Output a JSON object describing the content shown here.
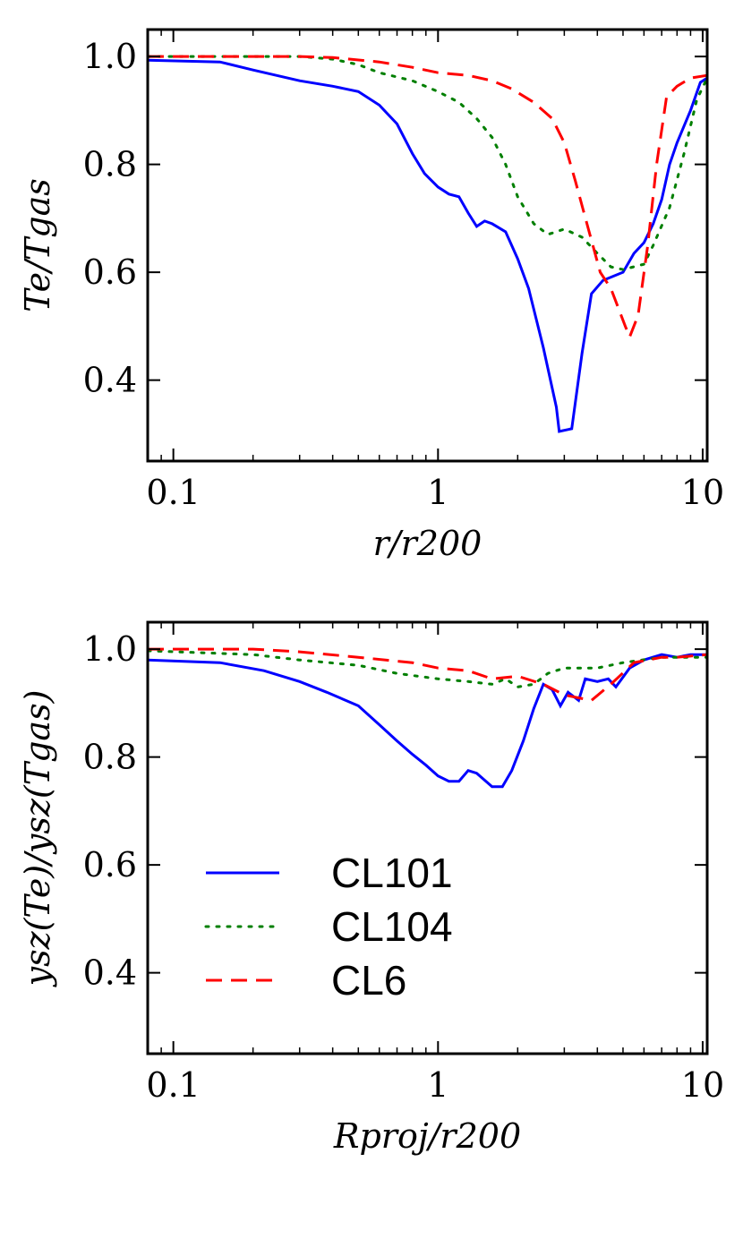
{
  "chart_data": [
    {
      "type": "line",
      "xlabel": "r/r200",
      "ylabel": "Te/Tgas",
      "xscale": "log",
      "xlim": [
        0.08,
        10.4
      ],
      "xticks": [
        0.1,
        1,
        10
      ],
      "ylim": [
        0.25,
        1.05
      ],
      "yticks": [
        {
          "value": 1,
          "label": "1.0"
        },
        0.8,
        0.6,
        0.4
      ],
      "series": [
        {
          "color": "#0000ff",
          "linestyle": "solid",
          "x": [
            0.08,
            0.15,
            0.2,
            0.3,
            0.4,
            0.5,
            0.6,
            0.7,
            0.8,
            0.89,
            1.0,
            1.1,
            1.2,
            1.3,
            1.4,
            1.5,
            1.6,
            1.8,
            2.0,
            2.2,
            2.5,
            2.8,
            2.87,
            3.2,
            3.5,
            3.8,
            4.2,
            5.0,
            5.5,
            6.0,
            6.5,
            7.0,
            7.5,
            8.0,
            9.0,
            9.8,
            10.4
          ],
          "values": [
            0.993,
            0.99,
            0.975,
            0.955,
            0.945,
            0.935,
            0.91,
            0.875,
            0.82,
            0.783,
            0.758,
            0.745,
            0.74,
            0.71,
            0.685,
            0.695,
            0.69,
            0.675,
            0.625,
            0.57,
            0.46,
            0.35,
            0.305,
            0.31,
            0.45,
            0.56,
            0.585,
            0.6,
            0.635,
            0.655,
            0.69,
            0.735,
            0.8,
            0.84,
            0.9,
            0.952,
            0.96
          ]
        },
        {
          "color": "#007f00",
          "linestyle": "dotted",
          "x": [
            0.08,
            0.3,
            0.4,
            0.5,
            0.6,
            0.8,
            1.0,
            1.2,
            1.4,
            1.6,
            1.8,
            2.0,
            2.3,
            2.6,
            3.0,
            3.5,
            4.0,
            4.5,
            5.0,
            6.0,
            6.5,
            7.5,
            8.5,
            9.5,
            10.4
          ],
          "values": [
            1.0,
            1.0,
            0.995,
            0.985,
            0.97,
            0.955,
            0.935,
            0.915,
            0.885,
            0.85,
            0.8,
            0.74,
            0.69,
            0.67,
            0.68,
            0.665,
            0.635,
            0.61,
            0.605,
            0.615,
            0.65,
            0.72,
            0.82,
            0.92,
            0.96
          ]
        },
        {
          "color": "#ff0000",
          "linestyle": "dashed",
          "x": [
            0.08,
            0.3,
            0.4,
            0.6,
            0.8,
            1.0,
            1.3,
            1.6,
            1.9,
            2.3,
            2.7,
            3.0,
            3.3,
            3.7,
            4.1,
            4.5,
            5.1,
            5.3,
            5.7,
            6.2,
            6.7,
            7.3,
            8.0,
            9.0,
            10.4
          ],
          "values": [
            1.0,
            1.0,
            0.998,
            0.99,
            0.98,
            0.97,
            0.965,
            0.955,
            0.94,
            0.915,
            0.885,
            0.84,
            0.77,
            0.68,
            0.6,
            0.57,
            0.5,
            0.48,
            0.52,
            0.65,
            0.8,
            0.925,
            0.945,
            0.96,
            0.965
          ]
        }
      ]
    },
    {
      "type": "line",
      "xlabel": "Rproj/r200",
      "ylabel": "ysz(Te)/ysz(Tgas)",
      "xscale": "log",
      "xlim": [
        0.08,
        10.4
      ],
      "xticks": [
        0.1,
        1,
        10
      ],
      "ylim": [
        0.25,
        1.05
      ],
      "yticks": [
        {
          "value": 1,
          "label": "1.0"
        },
        0.8,
        0.6,
        0.4
      ],
      "legend": "center left",
      "series": [
        {
          "name": "CL101",
          "color": "#0000ff",
          "linestyle": "solid",
          "x": [
            0.08,
            0.15,
            0.22,
            0.3,
            0.38,
            0.5,
            0.6,
            0.7,
            0.8,
            0.9,
            1.0,
            1.1,
            1.2,
            1.3,
            1.4,
            1.6,
            1.75,
            1.9,
            2.1,
            2.3,
            2.5,
            2.7,
            2.9,
            3.1,
            3.4,
            3.6,
            4.0,
            4.4,
            4.7,
            5.3,
            6.0,
            7.0,
            8.0,
            9.0,
            10.4
          ],
          "values": [
            0.98,
            0.975,
            0.96,
            0.94,
            0.92,
            0.895,
            0.86,
            0.83,
            0.805,
            0.785,
            0.765,
            0.755,
            0.755,
            0.775,
            0.77,
            0.745,
            0.745,
            0.775,
            0.83,
            0.89,
            0.935,
            0.925,
            0.895,
            0.92,
            0.905,
            0.945,
            0.94,
            0.945,
            0.93,
            0.965,
            0.98,
            0.99,
            0.985,
            0.99,
            0.99
          ]
        },
        {
          "name": "CL104",
          "color": "#007f00",
          "linestyle": "dotted",
          "x": [
            0.08,
            0.2,
            0.3,
            0.5,
            0.7,
            1.0,
            1.3,
            1.6,
            1.8,
            2.0,
            2.3,
            2.6,
            3.0,
            4.0,
            5.0,
            7.0,
            10.4
          ],
          "values": [
            0.997,
            0.99,
            0.98,
            0.97,
            0.955,
            0.945,
            0.94,
            0.935,
            0.945,
            0.93,
            0.935,
            0.955,
            0.965,
            0.965,
            0.975,
            0.985,
            0.985
          ]
        },
        {
          "name": "CL6",
          "color": "#ff0000",
          "linestyle": "dashed",
          "x": [
            0.08,
            0.2,
            0.3,
            0.5,
            0.8,
            1.0,
            1.3,
            1.6,
            2.0,
            2.5,
            3.0,
            3.8,
            4.5,
            5.5,
            7.0,
            8.0,
            10.4
          ],
          "values": [
            1.0,
            1.0,
            0.995,
            0.985,
            0.975,
            0.965,
            0.96,
            0.945,
            0.95,
            0.935,
            0.915,
            0.905,
            0.935,
            0.975,
            0.985,
            0.985,
            0.99
          ]
        }
      ]
    }
  ]
}
